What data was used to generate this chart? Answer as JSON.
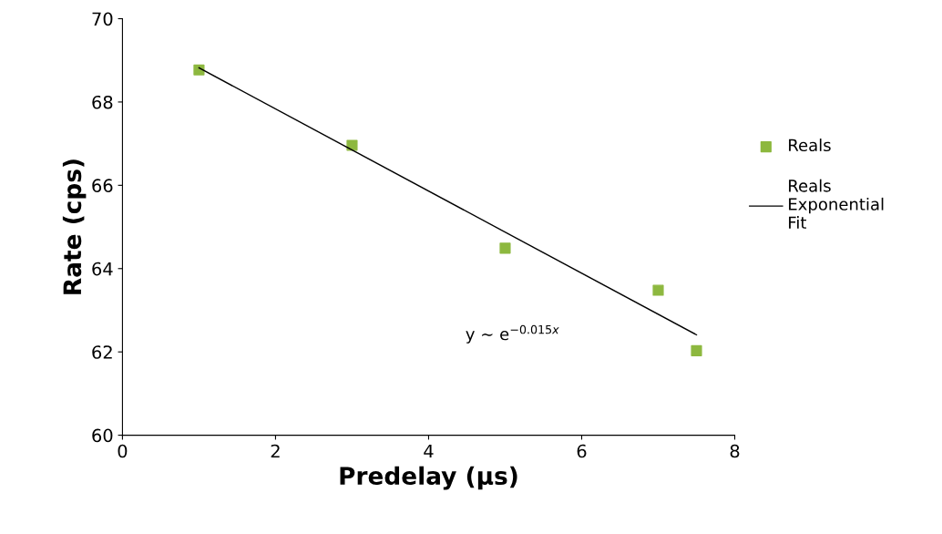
{
  "chart_data": {
    "type": "scatter",
    "xlabel": "Predelay (µs)",
    "ylabel": "Rate (cps)",
    "x": [
      1,
      3,
      5,
      7,
      7.5
    ],
    "series": [
      {
        "name": "Reals",
        "color": "#8db83f",
        "values": [
          68.77,
          66.96,
          64.49,
          63.48,
          62.03
        ],
        "marker": "square"
      },
      {
        "name": "Reals Exponential Fit",
        "type": "line",
        "color": "#000000",
        "x": [
          1,
          7.5
        ],
        "values": [
          68.82,
          62.41
        ],
        "marker": "none",
        "line_style": "solid"
      }
    ],
    "xlim": [
      0,
      8
    ],
    "xticks": [
      0,
      2,
      4,
      6,
      8
    ],
    "ylim": [
      60,
      70
    ],
    "yticks": [
      60,
      62,
      64,
      66,
      68,
      70
    ],
    "grid": false,
    "legend": "right",
    "annotations": [
      "y ~ e$^{−0.015x}$"
    ]
  }
}
